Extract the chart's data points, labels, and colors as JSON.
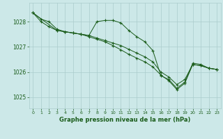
{
  "background_color": "#cce8e8",
  "grid_color": "#aacccc",
  "line_color": "#1a5c1a",
  "marker_color": "#1a5c1a",
  "xlabel": "Graphe pression niveau de la mer (hPa)",
  "xlabel_color": "#1a5c1a",
  "tick_color": "#1a5c1a",
  "xlim": [
    -0.5,
    23.5
  ],
  "ylim": [
    1024.55,
    1028.75
  ],
  "yticks": [
    1025,
    1026,
    1027,
    1028
  ],
  "xticks": [
    0,
    1,
    2,
    3,
    4,
    5,
    6,
    7,
    8,
    9,
    10,
    11,
    12,
    13,
    14,
    15,
    16,
    17,
    18,
    19,
    20,
    21,
    22,
    23
  ],
  "series": [
    {
      "x": [
        0,
        1,
        2,
        3,
        4,
        5,
        6,
        7,
        8,
        9,
        10,
        11,
        12,
        13,
        14,
        15,
        16,
        17,
        18,
        19,
        20,
        21,
        22,
        23
      ],
      "y": [
        1028.35,
        1028.1,
        1028.0,
        1027.7,
        1027.6,
        1027.55,
        1027.5,
        1027.45,
        1028.0,
        1028.05,
        1028.05,
        1027.95,
        1027.65,
        1027.4,
        1027.2,
        1026.85,
        1025.85,
        1025.7,
        1025.35,
        1025.6,
        1026.35,
        1026.3,
        1026.15,
        1026.1
      ]
    },
    {
      "x": [
        0,
        1,
        2,
        3,
        4,
        5,
        6,
        7,
        8,
        9,
        10,
        11,
        12,
        13,
        14,
        15,
        16,
        17,
        18,
        19,
        20,
        21,
        22,
        23
      ],
      "y": [
        1028.35,
        1028.0,
        1027.8,
        1027.65,
        1027.6,
        1027.55,
        1027.5,
        1027.45,
        1027.35,
        1027.25,
        1027.15,
        1027.05,
        1026.9,
        1026.75,
        1026.6,
        1026.4,
        1026.0,
        1025.8,
        1025.5,
        1025.7,
        1026.3,
        1026.25,
        1026.15,
        1026.1
      ]
    },
    {
      "x": [
        0,
        3,
        4,
        5,
        6,
        7,
        8,
        9,
        10,
        11,
        12,
        13,
        14,
        15,
        16,
        17,
        18,
        19,
        20,
        21,
        22,
        23
      ],
      "y": [
        1028.35,
        1027.65,
        1027.6,
        1027.55,
        1027.5,
        1027.4,
        1027.3,
        1027.2,
        1027.05,
        1026.88,
        1026.7,
        1026.55,
        1026.4,
        1026.2,
        1025.88,
        1025.65,
        1025.3,
        1025.55,
        1026.3,
        1026.25,
        1026.15,
        1026.1
      ]
    }
  ]
}
